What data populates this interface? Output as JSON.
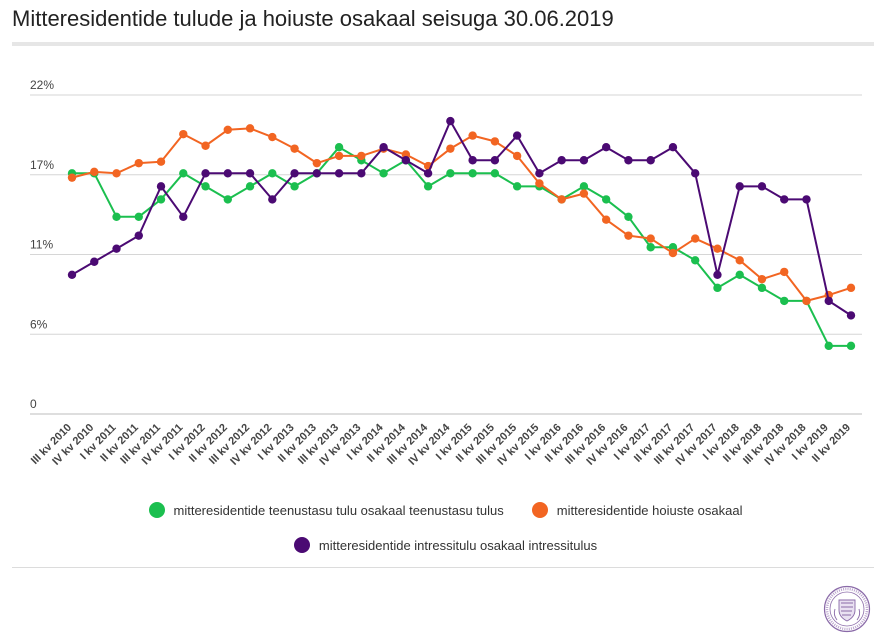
{
  "title": "Mitteresidentide tulude ja hoiuste osakaal seisuga 30.06.2019",
  "chart_data": {
    "type": "line",
    "title": "Mitteresidentide tulude ja hoiuste osakaal seisuga 30.06.2019",
    "xlabel": "",
    "ylabel": "",
    "ylim": [
      0,
      22
    ],
    "yticks": [
      {
        "value": 0,
        "label": "0"
      },
      {
        "value": 5.5,
        "label": "6%"
      },
      {
        "value": 11,
        "label": "11%"
      },
      {
        "value": 16.5,
        "label": "17%"
      },
      {
        "value": 22,
        "label": "22%"
      }
    ],
    "grid": true,
    "legend_position": "bottom",
    "categories": [
      "III kv 2010",
      "IV kv 2010",
      "I kv 2011",
      "II kv 2011",
      "III kv 2011",
      "IV kv 2011",
      "I kv 2012",
      "II kv 2012",
      "III kv 2012",
      "IV kv 2012",
      "I kv 2013",
      "II kv 2013",
      "III kv 2013",
      "IV kv 2013",
      "I kv 2014",
      "II kv 2014",
      "III kv 2014",
      "IV kv 2014",
      "I kv 2015",
      "II kv 2015",
      "III kv 2015",
      "IV kv 2015",
      "I kv 2016",
      "II kv 2016",
      "III kv 2016",
      "IV kv 2016",
      "I kv 2017",
      "II kv 2017",
      "III kv 2017",
      "IV kv 2017",
      "I kv 2018",
      "II kv 2018",
      "III kv 2018",
      "IV kv 2018",
      "I kv 2019",
      "II kv 2019"
    ],
    "series": [
      {
        "name": "mitteresidentide teenustasu tulu osakaal teenustasu tulus",
        "color": "#1bbf4f",
        "values": [
          16.6,
          16.6,
          13.6,
          13.6,
          14.8,
          16.6,
          15.7,
          14.8,
          15.7,
          16.6,
          15.7,
          16.6,
          18.4,
          17.5,
          16.6,
          17.5,
          15.7,
          16.6,
          16.6,
          16.6,
          15.7,
          15.7,
          14.8,
          15.7,
          14.8,
          13.6,
          11.5,
          11.5,
          10.6,
          8.7,
          9.6,
          8.7,
          7.8,
          7.8,
          4.7,
          4.7
        ]
      },
      {
        "name": "mitteresidentide hoiuste osakaal",
        "color": "#f26522",
        "values": [
          16.3,
          16.7,
          16.6,
          17.3,
          17.4,
          19.3,
          18.5,
          19.6,
          19.7,
          19.1,
          18.3,
          17.3,
          17.8,
          17.8,
          18.3,
          17.9,
          17.1,
          18.3,
          19.2,
          18.8,
          17.8,
          15.9,
          14.8,
          15.2,
          13.4,
          12.3,
          12.1,
          11.1,
          12.1,
          11.4,
          10.6,
          9.3,
          9.8,
          7.8,
          8.2,
          8.7
        ]
      },
      {
        "name": "mitteresidentide intressitulu osakaal intressitulus",
        "color": "#4b0a73",
        "values": [
          9.6,
          10.5,
          11.4,
          12.3,
          15.7,
          13.6,
          16.6,
          16.6,
          16.6,
          14.8,
          16.6,
          16.6,
          16.6,
          16.6,
          18.4,
          17.5,
          16.6,
          20.2,
          17.5,
          17.5,
          19.2,
          16.6,
          17.5,
          17.5,
          18.4,
          17.5,
          17.5,
          18.4,
          16.6,
          9.6,
          15.7,
          15.7,
          14.8,
          14.8,
          7.8,
          6.8
        ]
      }
    ]
  }
}
